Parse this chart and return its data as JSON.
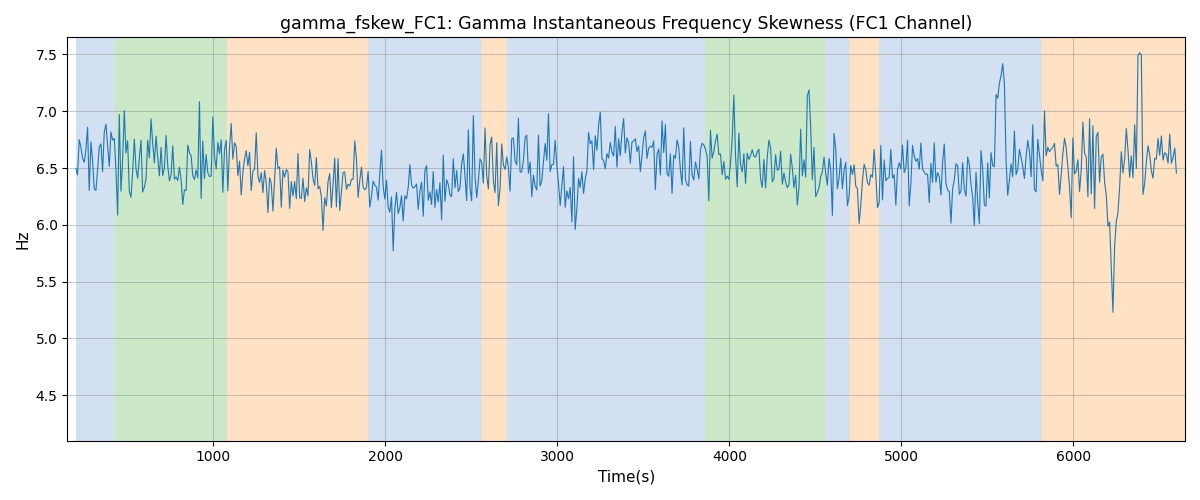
{
  "title": "gamma_fskew_FC1: Gamma Instantaneous Frequency Skewness (FC1 Channel)",
  "xlabel": "Time(s)",
  "ylabel": "Hz",
  "xlim": [
    150,
    6650
  ],
  "ylim": [
    4.1,
    7.65
  ],
  "line_color": "#1f77b4",
  "line_width": 0.8,
  "background_bands": [
    {
      "start": 200,
      "end": 430,
      "color": "#aec7e8",
      "alpha": 0.55
    },
    {
      "start": 430,
      "end": 1080,
      "color": "#98d494",
      "alpha": 0.5
    },
    {
      "start": 1080,
      "end": 1900,
      "color": "#fdbf7a",
      "alpha": 0.45
    },
    {
      "start": 1900,
      "end": 2560,
      "color": "#aec7e8",
      "alpha": 0.55
    },
    {
      "start": 2560,
      "end": 2710,
      "color": "#fdbf7a",
      "alpha": 0.45
    },
    {
      "start": 2710,
      "end": 3680,
      "color": "#aec7e8",
      "alpha": 0.55
    },
    {
      "start": 3680,
      "end": 3860,
      "color": "#aec7e8",
      "alpha": 0.55
    },
    {
      "start": 3860,
      "end": 4560,
      "color": "#98d494",
      "alpha": 0.5
    },
    {
      "start": 4560,
      "end": 4700,
      "color": "#aec7e8",
      "alpha": 0.55
    },
    {
      "start": 4700,
      "end": 4870,
      "color": "#fdbf7a",
      "alpha": 0.45
    },
    {
      "start": 4870,
      "end": 5820,
      "color": "#aec7e8",
      "alpha": 0.55
    },
    {
      "start": 5820,
      "end": 6650,
      "color": "#fdbf7a",
      "alpha": 0.45
    }
  ],
  "figsize": [
    12,
    5
  ],
  "dpi": 100
}
